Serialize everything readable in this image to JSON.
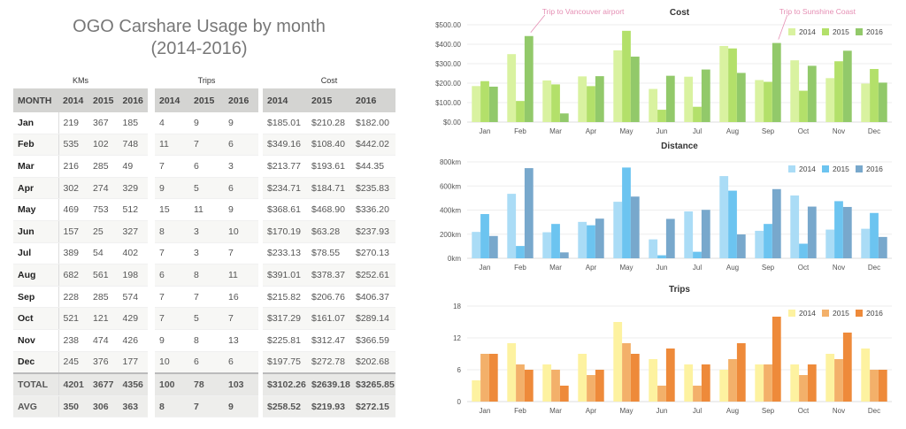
{
  "page": {
    "title_line1": "OGO Carshare Usage by month",
    "title_line2": "(2014-2016)"
  },
  "tables": {
    "kms_caption": "KMs",
    "trips_caption": "Trips",
    "cost_caption": "Cost",
    "month_header": "MONTH",
    "years": [
      "2014",
      "2015",
      "2016"
    ],
    "rows": [
      {
        "month": "Jan",
        "kms": [
          "219",
          "367",
          "185"
        ],
        "trips": [
          "4",
          "9",
          "9"
        ],
        "cost": [
          "$185.01",
          "$210.28",
          "$182.00"
        ]
      },
      {
        "month": "Feb",
        "kms": [
          "535",
          "102",
          "748"
        ],
        "trips": [
          "11",
          "7",
          "6"
        ],
        "cost": [
          "$349.16",
          "$108.40",
          "$442.02"
        ]
      },
      {
        "month": "Mar",
        "kms": [
          "216",
          "285",
          "49"
        ],
        "trips": [
          "7",
          "6",
          "3"
        ],
        "cost": [
          "$213.77",
          "$193.61",
          "$44.35"
        ]
      },
      {
        "month": "Apr",
        "kms": [
          "302",
          "274",
          "329"
        ],
        "trips": [
          "9",
          "5",
          "6"
        ],
        "cost": [
          "$234.71",
          "$184.71",
          "$235.83"
        ]
      },
      {
        "month": "May",
        "kms": [
          "469",
          "753",
          "512"
        ],
        "trips": [
          "15",
          "11",
          "9"
        ],
        "cost": [
          "$368.61",
          "$468.90",
          "$336.20"
        ]
      },
      {
        "month": "Jun",
        "kms": [
          "157",
          "25",
          "327"
        ],
        "trips": [
          "8",
          "3",
          "10"
        ],
        "cost": [
          "$170.19",
          "$63.28",
          "$237.93"
        ]
      },
      {
        "month": "Jul",
        "kms": [
          "389",
          "54",
          "402"
        ],
        "trips": [
          "7",
          "3",
          "7"
        ],
        "cost": [
          "$233.13",
          "$78.55",
          "$270.13"
        ]
      },
      {
        "month": "Aug",
        "kms": [
          "682",
          "561",
          "198"
        ],
        "trips": [
          "6",
          "8",
          "11"
        ],
        "cost": [
          "$391.01",
          "$378.37",
          "$252.61"
        ]
      },
      {
        "month": "Sep",
        "kms": [
          "228",
          "285",
          "574"
        ],
        "trips": [
          "7",
          "7",
          "16"
        ],
        "cost": [
          "$215.82",
          "$206.76",
          "$406.37"
        ]
      },
      {
        "month": "Oct",
        "kms": [
          "521",
          "121",
          "429"
        ],
        "trips": [
          "7",
          "5",
          "7"
        ],
        "cost": [
          "$317.29",
          "$161.07",
          "$289.14"
        ]
      },
      {
        "month": "Nov",
        "kms": [
          "238",
          "474",
          "426"
        ],
        "trips": [
          "9",
          "8",
          "13"
        ],
        "cost": [
          "$225.81",
          "$312.47",
          "$366.59"
        ]
      },
      {
        "month": "Dec",
        "kms": [
          "245",
          "376",
          "177"
        ],
        "trips": [
          "10",
          "6",
          "6"
        ],
        "cost": [
          "$197.75",
          "$272.78",
          "$202.68"
        ]
      }
    ],
    "total": {
      "label": "TOTAL",
      "kms": [
        "4201",
        "3677",
        "4356"
      ],
      "trips": [
        "100",
        "78",
        "103"
      ],
      "cost": [
        "$3102.26",
        "$2639.18",
        "$3265.85"
      ]
    },
    "avg": {
      "label": "AVG",
      "kms": [
        "350",
        "306",
        "363"
      ],
      "trips": [
        "8",
        "7",
        "9"
      ],
      "cost": [
        "$258.52",
        "$219.93",
        "$272.15"
      ]
    }
  },
  "chart_data": [
    {
      "type": "bar",
      "title": "Cost",
      "categories": [
        "Jan",
        "Feb",
        "Mar",
        "Apr",
        "May",
        "Jun",
        "Jul",
        "Aug",
        "Sep",
        "Oct",
        "Nov",
        "Dec"
      ],
      "series": [
        {
          "name": "2014",
          "color": "#d9f2a0",
          "values": [
            185.01,
            349.16,
            213.77,
            234.71,
            368.61,
            170.19,
            233.13,
            391.01,
            215.82,
            317.29,
            225.81,
            197.75
          ]
        },
        {
          "name": "2015",
          "color": "#b3e06a",
          "values": [
            210.28,
            108.4,
            193.61,
            184.71,
            468.9,
            63.28,
            78.55,
            378.37,
            206.76,
            161.07,
            312.47,
            272.78
          ]
        },
        {
          "name": "2016",
          "color": "#92c96a",
          "values": [
            182.0,
            442.02,
            44.35,
            235.83,
            336.2,
            237.93,
            270.13,
            252.61,
            406.37,
            289.14,
            366.59,
            202.68
          ]
        }
      ],
      "yticks": [
        "$0.00",
        "$100.00",
        "$200.00",
        "$300.00",
        "$400.00",
        "$500.00"
      ],
      "ylim": [
        0,
        500
      ],
      "grid": true,
      "legend": "top-right",
      "annotations": [
        {
          "text": "Trip to Vancouver airport",
          "category": "Feb",
          "series": "2016"
        },
        {
          "text": "Trip to Sunshine Coast",
          "category": "Sep",
          "series": "2016"
        }
      ],
      "annotation_color": "#e58fb4"
    },
    {
      "type": "bar",
      "title": "Distance",
      "categories": [
        "Jan",
        "Feb",
        "Mar",
        "Apr",
        "May",
        "Jun",
        "Jul",
        "Aug",
        "Sep",
        "Oct",
        "Nov",
        "Dec"
      ],
      "series": [
        {
          "name": "2014",
          "color": "#aadcf6",
          "values": [
            219,
            535,
            216,
            302,
            469,
            157,
            389,
            682,
            228,
            521,
            238,
            245
          ]
        },
        {
          "name": "2015",
          "color": "#6cc4f0",
          "values": [
            367,
            102,
            285,
            274,
            753,
            25,
            54,
            561,
            285,
            121,
            474,
            376
          ]
        },
        {
          "name": "2016",
          "color": "#78a8cc",
          "values": [
            185,
            748,
            49,
            329,
            512,
            327,
            402,
            198,
            574,
            429,
            426,
            177
          ]
        }
      ],
      "yticks": [
        "0km",
        "200km",
        "400km",
        "600km",
        "800km"
      ],
      "ylim": [
        0,
        800
      ],
      "grid": true,
      "legend": "top-right",
      "annotations": []
    },
    {
      "type": "bar",
      "title": "Trips",
      "categories": [
        "Jan",
        "Feb",
        "Mar",
        "Apr",
        "May",
        "Jun",
        "Jul",
        "Aug",
        "Sep",
        "Oct",
        "Nov",
        "Dec"
      ],
      "series": [
        {
          "name": "2014",
          "color": "#fdf2a0",
          "values": [
            4,
            11,
            7,
            9,
            15,
            8,
            7,
            6,
            7,
            7,
            9,
            10
          ]
        },
        {
          "name": "2015",
          "color": "#f3b06a",
          "values": [
            9,
            7,
            6,
            5,
            11,
            3,
            3,
            8,
            7,
            5,
            8,
            6
          ]
        },
        {
          "name": "2016",
          "color": "#ee8a3a",
          "values": [
            9,
            6,
            3,
            6,
            9,
            10,
            7,
            11,
            16,
            7,
            13,
            6
          ]
        }
      ],
      "yticks": [
        "0",
        "6",
        "12",
        "18"
      ],
      "ylim": [
        0,
        18
      ],
      "grid": true,
      "legend": "top-right",
      "annotations": []
    }
  ]
}
